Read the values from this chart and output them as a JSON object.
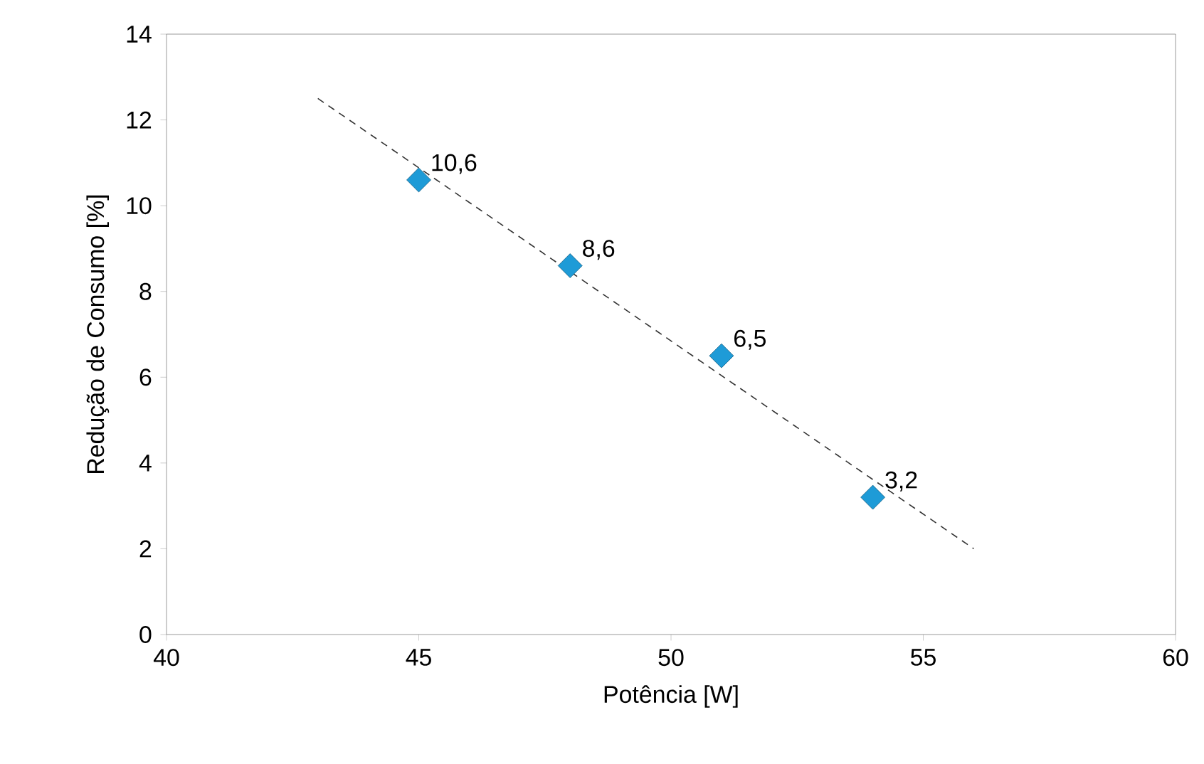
{
  "chart_data": {
    "type": "scatter",
    "xlabel": "Potência [W]",
    "ylabel": "Redução de Consumo [%]",
    "xlim": [
      40,
      60
    ],
    "xticks": [
      40,
      45,
      50,
      55,
      60
    ],
    "ylim": [
      0,
      14
    ],
    "yticks": [
      0,
      2,
      4,
      6,
      8,
      10,
      12,
      14
    ],
    "series": [
      {
        "marker": "diamond",
        "color": "#1e9bd7",
        "x": [
          45,
          48,
          51,
          54
        ],
        "values": [
          10.6,
          8.6,
          6.5,
          3.2
        ],
        "value_labels": [
          "10,6",
          "8,6",
          "6,5",
          "3,2"
        ]
      },
      {
        "type": "line",
        "line_style": "dashed",
        "marker": "none",
        "color": "#333333",
        "x": [
          43,
          56
        ],
        "values": [
          12.5,
          2.0
        ]
      }
    ]
  }
}
